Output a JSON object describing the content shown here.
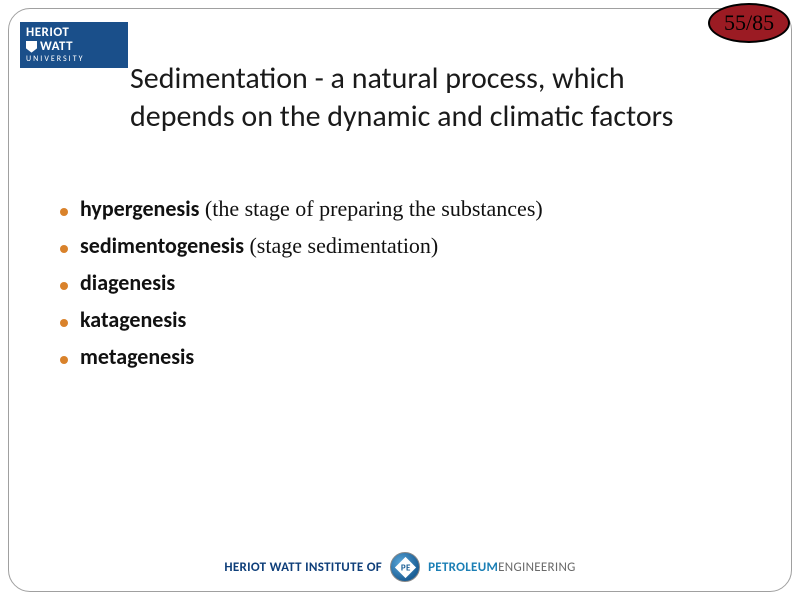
{
  "page": {
    "current": 55,
    "total": 85,
    "badge_bg": "#9b1b23"
  },
  "logo": {
    "line1": "HERIOT",
    "line2": "WATT",
    "line3": "UNIVERSITY",
    "bg": "#1a4f8a"
  },
  "title": "Sedimentation - a natural process, which depends on the dynamic and climatic factors",
  "bullet_color": "#d9822b",
  "bullets": [
    {
      "bold": "hypergenesis",
      "note": " (the stage of preparing the substances)"
    },
    {
      "bold": "sedimentogenesis",
      "note": "  (stage sedimentation)"
    },
    {
      "bold": "diagenesis",
      "note": ""
    },
    {
      "bold": "katagenesis",
      "note": ""
    },
    {
      "bold": "metagenesis",
      "note": ""
    }
  ],
  "footer": {
    "left": "HERIOT WATT INSTITUTE OF",
    "right_a": "PETROLEUM",
    "right_b": "ENGINEERING",
    "logo_letters": "PE"
  }
}
